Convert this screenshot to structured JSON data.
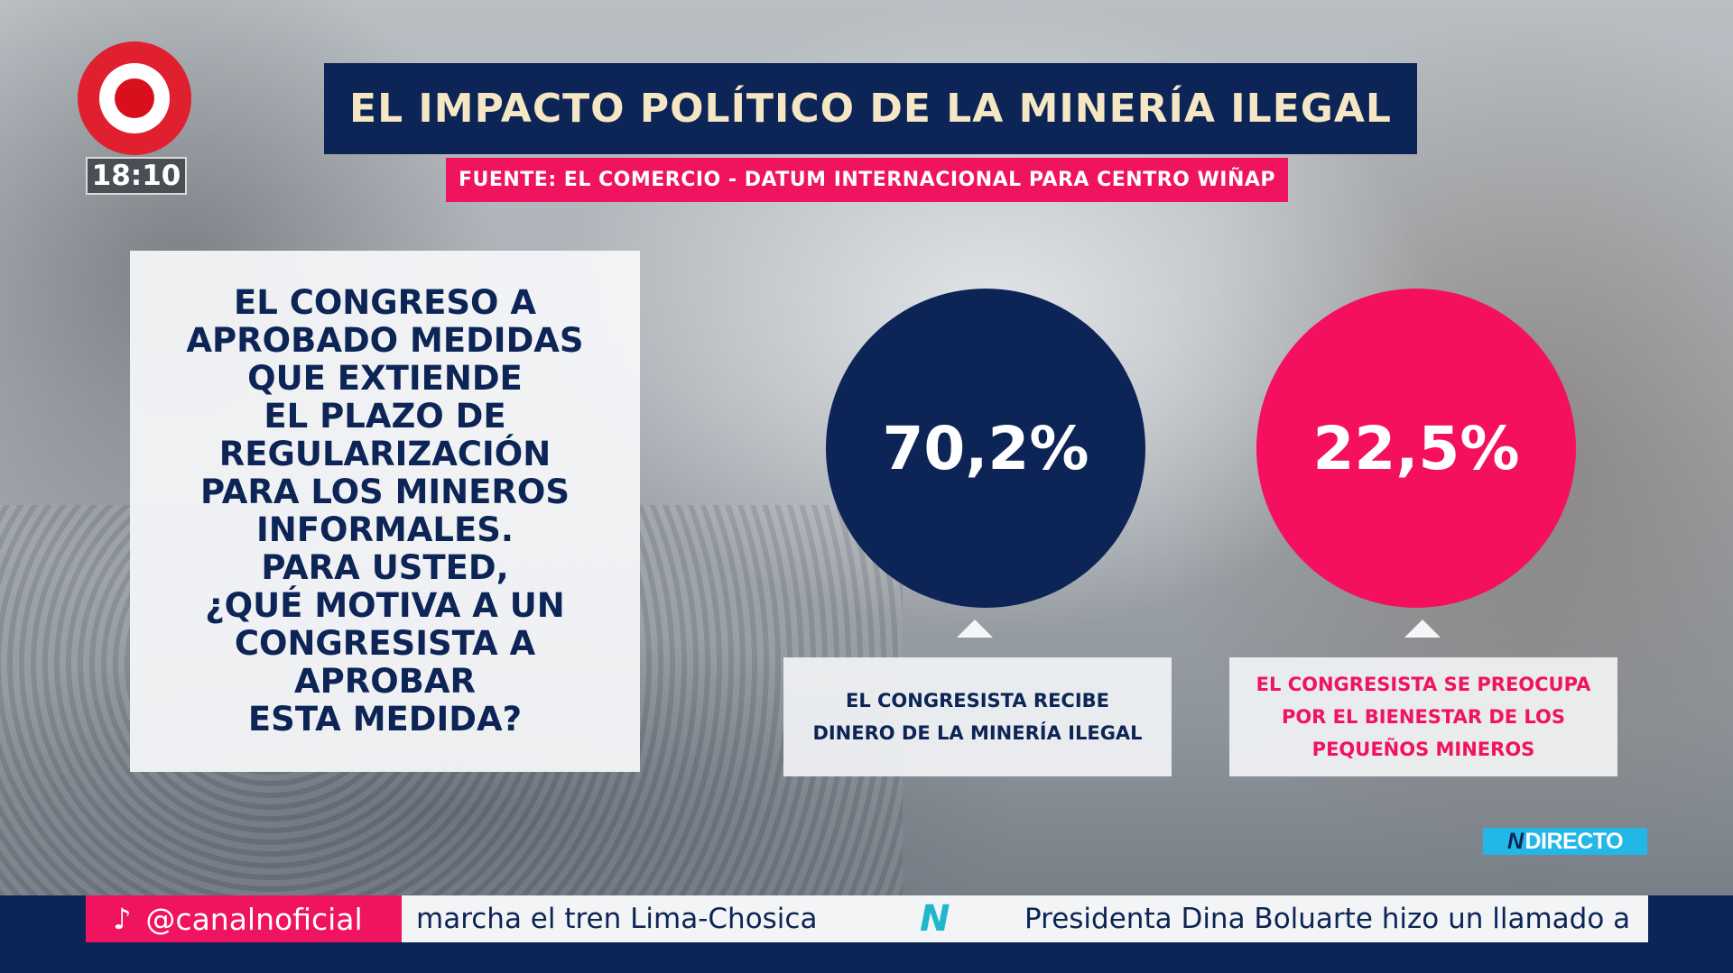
{
  "channel": {
    "clock": "18:10",
    "badge_label": "DIRECTO",
    "badge_prefix": "N"
  },
  "header": {
    "title": "EL IMPACTO POLÍTICO DE LA MINERÍA ILEGAL",
    "source": "FUENTE: EL COMERCIO - DATUM INTERNACIONAL PARA CENTRO WIÑAP"
  },
  "question": {
    "text": "EL CONGRESO A\nAPROBADO MEDIDAS\nQUE EXTIENDE\nEL PLAZO DE\nREGULARIZACIÓN\nPARA LOS MINEROS\nINFORMALES.\nPARA USTED,\n¿QUÉ MOTIVA A UN\nCONGRESISTA A\nAPROBAR\nESTA MEDIDA?"
  },
  "results": [
    {
      "value": "70,2%",
      "label": "EL CONGRESISTA RECIBE\nDINERO DE LA MINERÍA ILEGAL",
      "color": "#0c2456"
    },
    {
      "value": "22,5%",
      "label": "EL CONGRESISTA SE PREOCUPA\nPOR EL BIENESTAR DE LOS\nPEQUEÑOS MINEROS",
      "color": "#f4105e"
    }
  ],
  "ticker": {
    "social_handle": "@canalnoficial",
    "social_icon": "tiktok-icon",
    "items": [
      "marcha el tren Lima-Chosica",
      "Presidenta Dina Boluarte hizo un llamado a"
    ],
    "separator_logo": "N"
  }
}
